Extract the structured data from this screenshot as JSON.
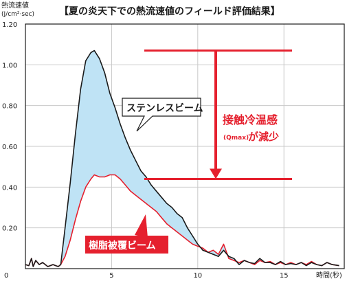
{
  "chart_data": {
    "type": "area",
    "title": "【夏の炎天下での熱流速値のフィールド評価結果】",
    "ylabel_line1": "熱流速値",
    "ylabel_line2": "(J/cm²·sec)",
    "xlabel": "時間(秒)",
    "xlim": [
      0,
      18.5
    ],
    "ylim": [
      0,
      1.2
    ],
    "x_ticks": [
      5,
      10,
      15
    ],
    "x_tick_labels": [
      "5",
      "10",
      "15"
    ],
    "y_ticks": [
      0.2,
      0.4,
      0.6,
      0.8,
      1.0,
      1.2
    ],
    "y_tick_labels": [
      "0.20",
      "0.40",
      "0.60",
      "0.80",
      "1.00",
      "1.20"
    ],
    "origin_label": "0",
    "grid": true,
    "series": [
      {
        "name": "ステンレスビーム",
        "color": "#1a1a1a",
        "fill": "#bfe3f5",
        "points": [
          [
            0,
            0.02
          ],
          [
            0.2,
            0.015
          ],
          [
            0.35,
            0.05
          ],
          [
            0.45,
            0.01
          ],
          [
            0.6,
            0.04
          ],
          [
            0.8,
            0.02
          ],
          [
            1.0,
            0.03
          ],
          [
            1.3,
            0.01
          ],
          [
            1.6,
            0.02
          ],
          [
            1.9,
            0.01
          ],
          [
            2.05,
            0.02
          ],
          [
            2.3,
            0.2
          ],
          [
            2.6,
            0.42
          ],
          [
            2.9,
            0.66
          ],
          [
            3.2,
            0.88
          ],
          [
            3.5,
            1.02
          ],
          [
            3.8,
            1.06
          ],
          [
            4.0,
            1.07
          ],
          [
            4.3,
            1.03
          ],
          [
            4.6,
            0.96
          ],
          [
            4.9,
            0.86
          ],
          [
            5.2,
            0.79
          ],
          [
            5.5,
            0.71
          ],
          [
            5.8,
            0.64
          ],
          [
            6.1,
            0.58
          ],
          [
            6.4,
            0.53
          ],
          [
            6.7,
            0.48
          ],
          [
            7.0,
            0.45
          ],
          [
            7.3,
            0.41
          ],
          [
            7.6,
            0.38
          ],
          [
            7.9,
            0.35
          ],
          [
            8.2,
            0.32
          ],
          [
            8.5,
            0.3
          ],
          [
            8.8,
            0.27
          ],
          [
            9.1,
            0.25
          ],
          [
            9.4,
            0.2
          ],
          [
            9.7,
            0.16
          ],
          [
            10.0,
            0.12
          ],
          [
            10.3,
            0.09
          ],
          [
            10.6,
            0.08
          ],
          [
            10.9,
            0.07
          ],
          [
            11.2,
            0.06
          ],
          [
            11.5,
            0.09
          ],
          [
            11.8,
            0.06
          ],
          [
            12.1,
            0.05
          ],
          [
            12.4,
            0.02
          ],
          [
            12.7,
            0.04
          ],
          [
            13.0,
            0.03
          ],
          [
            13.3,
            0.025
          ],
          [
            13.6,
            0.05
          ],
          [
            13.9,
            0.03
          ],
          [
            14.2,
            0.03
          ],
          [
            14.5,
            0.02
          ],
          [
            14.8,
            0.035
          ],
          [
            15.1,
            0.02
          ],
          [
            15.4,
            0.025
          ],
          [
            15.7,
            0.02
          ],
          [
            16.0,
            0.03
          ],
          [
            16.3,
            0.015
          ],
          [
            16.6,
            0.03
          ],
          [
            16.9,
            0.02
          ],
          [
            17.2,
            0.015
          ],
          [
            17.5,
            0.03
          ],
          [
            17.8,
            0.02
          ],
          [
            18.2,
            0.015
          ]
        ]
      },
      {
        "name": "樹脂被覆ビーム",
        "color": "#e5202e",
        "points": [
          [
            0,
            0.02
          ],
          [
            0.2,
            0.015
          ],
          [
            0.35,
            0.05
          ],
          [
            0.45,
            0.01
          ],
          [
            0.6,
            0.04
          ],
          [
            0.8,
            0.02
          ],
          [
            1.0,
            0.03
          ],
          [
            1.3,
            0.01
          ],
          [
            1.6,
            0.02
          ],
          [
            1.9,
            0.01
          ],
          [
            2.05,
            0.02
          ],
          [
            2.3,
            0.06
          ],
          [
            2.6,
            0.14
          ],
          [
            2.9,
            0.24
          ],
          [
            3.2,
            0.33
          ],
          [
            3.5,
            0.4
          ],
          [
            3.8,
            0.44
          ],
          [
            4.0,
            0.46
          ],
          [
            4.3,
            0.45
          ],
          [
            4.6,
            0.45
          ],
          [
            4.9,
            0.46
          ],
          [
            5.2,
            0.46
          ],
          [
            5.5,
            0.44
          ],
          [
            5.8,
            0.41
          ],
          [
            6.1,
            0.38
          ],
          [
            6.4,
            0.36
          ],
          [
            6.7,
            0.34
          ],
          [
            7.0,
            0.32
          ],
          [
            7.3,
            0.3
          ],
          [
            7.6,
            0.28
          ],
          [
            7.9,
            0.25
          ],
          [
            8.2,
            0.22
          ],
          [
            8.5,
            0.2
          ],
          [
            8.8,
            0.18
          ],
          [
            9.1,
            0.16
          ],
          [
            9.4,
            0.14
          ],
          [
            9.7,
            0.12
          ],
          [
            10.0,
            0.11
          ],
          [
            10.3,
            0.1
          ],
          [
            10.6,
            0.08
          ],
          [
            10.9,
            0.09
          ],
          [
            11.2,
            0.07
          ],
          [
            11.5,
            0.12
          ],
          [
            11.8,
            0.05
          ],
          [
            12.1,
            0.04
          ],
          [
            12.4,
            0.03
          ],
          [
            12.7,
            0.04
          ],
          [
            13.0,
            0.03
          ],
          [
            13.3,
            0.02
          ],
          [
            13.6,
            0.04
          ],
          [
            13.9,
            0.03
          ],
          [
            14.2,
            0.035
          ],
          [
            14.5,
            0.02
          ],
          [
            14.8,
            0.03
          ],
          [
            15.1,
            0.02
          ],
          [
            15.4,
            0.03
          ],
          [
            15.7,
            0.02
          ],
          [
            16.0,
            0.03
          ],
          [
            16.3,
            0.02
          ],
          [
            16.6,
            0.035
          ],
          [
            16.9,
            0.02
          ],
          [
            17.2,
            0.015
          ],
          [
            17.5,
            0.03
          ],
          [
            17.8,
            0.02
          ],
          [
            18.2,
            0.015
          ]
        ]
      }
    ],
    "annotation": {
      "line1": "接触冷温感",
      "line2_small": "(Qmax)",
      "line2": "が減少",
      "color": "#e5202e",
      "upper_y": 1.07,
      "lower_y": 0.44
    }
  }
}
